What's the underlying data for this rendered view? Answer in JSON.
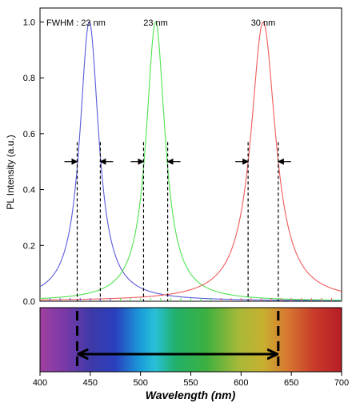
{
  "chart_data": {
    "type": "line",
    "xlabel": "Wavelength (nm)",
    "ylabel": "PL Intensity (a.u.)",
    "xlim": [
      400,
      700
    ],
    "ylim": [
      0,
      1.05
    ],
    "xticks": [
      "400",
      "450",
      "500",
      "550",
      "600",
      "650",
      "700"
    ],
    "yticks": [
      "0.0",
      "0.2",
      "0.4",
      "0.6",
      "0.8",
      "1.0"
    ],
    "series": [
      {
        "color": "#5a5adc",
        "peak": 449,
        "fwhm": 23,
        "label": "FWHM : 23 nm",
        "half_max_bounds": [
          437,
          460
        ]
      },
      {
        "color": "#4ee34e",
        "peak": 515,
        "fwhm": 23,
        "label": "23 nm",
        "half_max_bounds": [
          503,
          527
        ]
      },
      {
        "color": "#f05a5a",
        "peak": 622,
        "fwhm": 30,
        "label": "30 nm",
        "half_max_bounds": [
          607,
          637
        ]
      }
    ],
    "spectrum_bar": {
      "range": [
        400,
        700
      ],
      "marker_lines_nm": [
        437,
        637
      ]
    }
  }
}
